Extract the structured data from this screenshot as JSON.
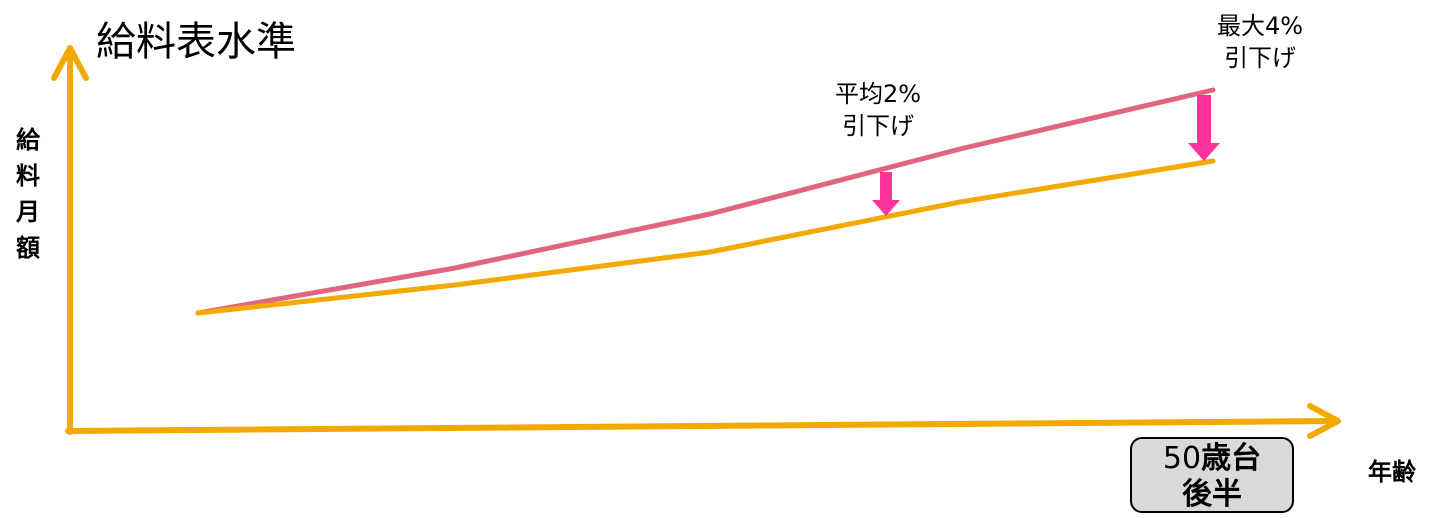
{
  "title": "給料表水準",
  "y_axis_label": [
    "給",
    "料",
    "月",
    "額"
  ],
  "x_axis_label": "年齢",
  "annotations": {
    "average": [
      "平均2%",
      "引下げ"
    ],
    "max": [
      "最大4%",
      "引下げ"
    ]
  },
  "age_box": {
    "line1_number": "50",
    "line1_text": "歳台",
    "line2": "後半"
  },
  "colors": {
    "axis": "#f2a900",
    "before_line": "#e06680",
    "after_line": "#f2a900",
    "arrow": "#ff3399",
    "box_fill": "#d9d9d9"
  },
  "icons": {
    "decrease_arrow": "down-arrow-icon"
  }
}
